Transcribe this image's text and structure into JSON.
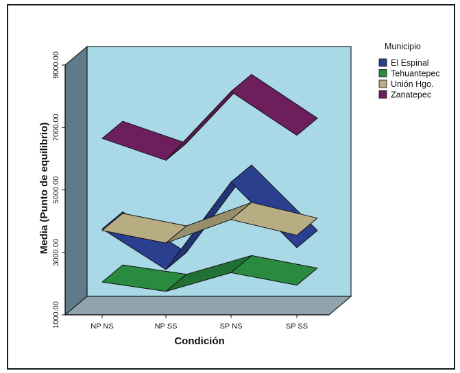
{
  "chart_data": {
    "type": "line",
    "style": "3d-ribbon",
    "xlabel": "Condición",
    "ylabel": "Media (Punto de equilibrio)",
    "categories": [
      "NP NS",
      "NP SS",
      "SP NS",
      "SP SS"
    ],
    "yticks": [
      "1000.00",
      "3000.00",
      "5000.00",
      "7000.00",
      "9000.00"
    ],
    "ylim": [
      1000,
      9000
    ],
    "legend": {
      "title": "Municipio",
      "placement": "right"
    },
    "series": [
      {
        "name": "El Espinal",
        "values": [
          3750,
          2450,
          5250,
          3150
        ],
        "color": "#2b3f8f"
      },
      {
        "name": "Tehuantepec",
        "values": [
          2050,
          1750,
          2350,
          1950
        ],
        "color": "#2a8a3f"
      },
      {
        "name": "Unión Hgo.",
        "values": [
          3700,
          3300,
          4050,
          3550
        ],
        "color": "#b8ad82"
      },
      {
        "name": "Zanatepec",
        "values": [
          6650,
          5950,
          8150,
          6750
        ],
        "color": "#6c1f5c"
      }
    ],
    "colors": {
      "wall": "#a9d8e6",
      "side": "#5f7b89",
      "floor": "#8fa4ae"
    }
  }
}
